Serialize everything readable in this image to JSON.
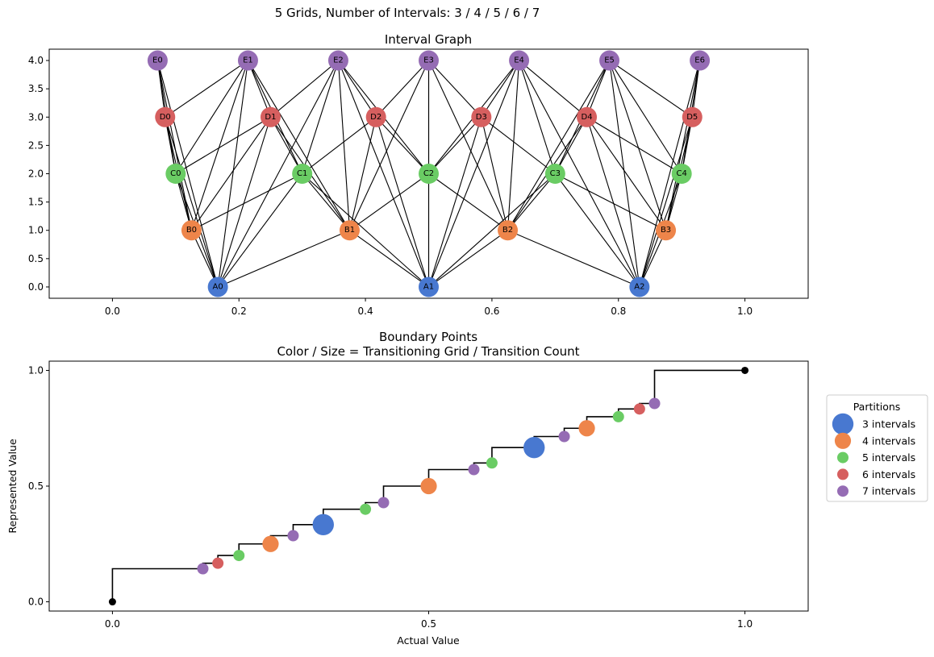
{
  "figure": {
    "suptitle": "5 Grids, Number of Intervals: 3 / 4 / 5 / 6 / 7"
  },
  "colors": {
    "grid3": "#4878d0",
    "grid4": "#ee854a",
    "grid5": "#6acc64",
    "grid6": "#d65f5f",
    "grid7": "#956cb4",
    "endpoint": "#000000",
    "step_line": "#000000"
  },
  "chart_data": [
    {
      "type": "scatter",
      "title": "Interval Graph",
      "xlabel": "",
      "ylabel": "",
      "xlim": [
        -0.1,
        1.1
      ],
      "ylim": [
        -0.2,
        4.2
      ],
      "xticks": [
        0.0,
        0.2,
        0.4,
        0.6,
        0.8,
        1.0
      ],
      "xtick_labels": [
        "0.0",
        "0.2",
        "0.4",
        "0.6",
        "0.8",
        "1.0"
      ],
      "yticks": [
        0.0,
        0.5,
        1.0,
        1.5,
        2.0,
        2.5,
        3.0,
        3.5,
        4.0
      ],
      "ytick_labels": [
        "0.0",
        "0.5",
        "1.0",
        "1.5",
        "2.0",
        "2.5",
        "3.0",
        "3.5",
        "4.0"
      ],
      "grid": false,
      "nodes": [
        {
          "label": "A0",
          "x": 0.1667,
          "y": 0,
          "grid": 3
        },
        {
          "label": "A1",
          "x": 0.5,
          "y": 0,
          "grid": 3
        },
        {
          "label": "A2",
          "x": 0.8333,
          "y": 0,
          "grid": 3
        },
        {
          "label": "B0",
          "x": 0.125,
          "y": 1,
          "grid": 4
        },
        {
          "label": "B1",
          "x": 0.375,
          "y": 1,
          "grid": 4
        },
        {
          "label": "B2",
          "x": 0.625,
          "y": 1,
          "grid": 4
        },
        {
          "label": "B3",
          "x": 0.875,
          "y": 1,
          "grid": 4
        },
        {
          "label": "C0",
          "x": 0.1,
          "y": 2,
          "grid": 5
        },
        {
          "label": "C1",
          "x": 0.3,
          "y": 2,
          "grid": 5
        },
        {
          "label": "C2",
          "x": 0.5,
          "y": 2,
          "grid": 5
        },
        {
          "label": "C3",
          "x": 0.7,
          "y": 2,
          "grid": 5
        },
        {
          "label": "C4",
          "x": 0.9,
          "y": 2,
          "grid": 5
        },
        {
          "label": "D0",
          "x": 0.0833,
          "y": 3,
          "grid": 6
        },
        {
          "label": "D1",
          "x": 0.25,
          "y": 3,
          "grid": 6
        },
        {
          "label": "D2",
          "x": 0.4167,
          "y": 3,
          "grid": 6
        },
        {
          "label": "D3",
          "x": 0.5833,
          "y": 3,
          "grid": 6
        },
        {
          "label": "D4",
          "x": 0.75,
          "y": 3,
          "grid": 6
        },
        {
          "label": "D5",
          "x": 0.9167,
          "y": 3,
          "grid": 6
        },
        {
          "label": "E0",
          "x": 0.0714,
          "y": 4,
          "grid": 7
        },
        {
          "label": "E1",
          "x": 0.2143,
          "y": 4,
          "grid": 7
        },
        {
          "label": "E2",
          "x": 0.3571,
          "y": 4,
          "grid": 7
        },
        {
          "label": "E3",
          "x": 0.5,
          "y": 4,
          "grid": 7
        },
        {
          "label": "E4",
          "x": 0.6429,
          "y": 4,
          "grid": 7
        },
        {
          "label": "E5",
          "x": 0.7857,
          "y": 4,
          "grid": 7
        },
        {
          "label": "E6",
          "x": 0.9286,
          "y": 4,
          "grid": 7
        }
      ],
      "edges_rule": "nodes in different rows are connected when their intervals overlap"
    },
    {
      "type": "scatter",
      "title": "Boundary Points\nColor / Size = Transitioning Grid / Transition Count",
      "xlabel": "Actual Value",
      "ylabel": "Represented Value",
      "xlim": [
        -0.1,
        1.1
      ],
      "ylim": [
        -0.04,
        1.04
      ],
      "xticks": [
        0.0,
        0.5,
        1.0
      ],
      "xtick_labels": [
        "0.0",
        "0.5",
        "1.0"
      ],
      "yticks": [
        0.0,
        0.5,
        1.0
      ],
      "ytick_labels": [
        "0.0",
        "0.5",
        "1.0"
      ],
      "grid": false,
      "legend": {
        "title": "Partitions",
        "placement": "outside right"
      },
      "series": [
        {
          "name": "3 intervals",
          "grid": 3,
          "x": [
            0.3333,
            0.6667
          ],
          "count": 5
        },
        {
          "name": "4 intervals",
          "grid": 4,
          "x": [
            0.25,
            0.5,
            0.75
          ],
          "count": 3
        },
        {
          "name": "5 intervals",
          "grid": 5,
          "x": [
            0.2,
            0.4,
            0.6,
            0.8
          ],
          "count": 1
        },
        {
          "name": "6 intervals",
          "grid": 6,
          "x": [
            0.1667,
            0.8333
          ],
          "count": 1
        },
        {
          "name": "7 intervals",
          "grid": 7,
          "x": [
            0.1429,
            0.2857,
            0.4286,
            0.5714,
            0.7143,
            0.8571
          ],
          "count": 1
        }
      ],
      "legend_grids": [
        3,
        4,
        5,
        6,
        7
      ],
      "endpoints": [
        {
          "x": 0,
          "y": 0
        },
        {
          "x": 1,
          "y": 1
        }
      ]
    }
  ]
}
